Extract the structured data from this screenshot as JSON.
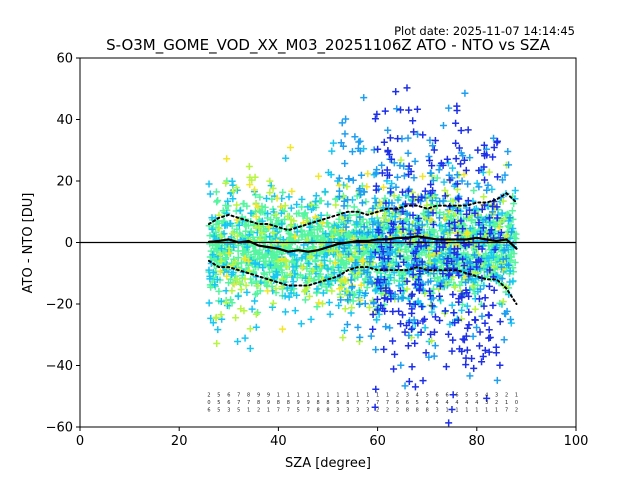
{
  "chart_data": {
    "type": "scatter",
    "title": "S-O3M_GOME_VOD_XX_M03_20251106Z ATO - NTO vs SZA",
    "plot_date": "Plot date: 2025-11-07 14:14:45",
    "xlabel": "SZA [degree]",
    "ylabel": "ATO - NTO [DU]",
    "xlim": [
      0,
      100
    ],
    "ylim": [
      -60,
      60
    ],
    "xticks": [
      0,
      20,
      40,
      60,
      80,
      100
    ],
    "yticks": [
      -60,
      -40,
      -20,
      0,
      20,
      40,
      60
    ],
    "reference_line_y": 0,
    "series": [
      {
        "name": "mean",
        "style": "solid",
        "color": "#000000",
        "x": [
          26,
          28,
          30,
          32,
          34,
          36,
          38,
          40,
          42,
          44,
          46,
          48,
          50,
          52,
          54,
          56,
          58,
          60,
          62,
          64,
          66,
          68,
          70,
          72,
          74,
          76,
          78,
          80,
          82,
          84,
          86,
          88
        ],
        "y": [
          0.2,
          0.5,
          1.0,
          0.0,
          0.5,
          -1.0,
          -1.5,
          -2.0,
          -3.0,
          -2.5,
          -3.0,
          -2.5,
          -1.5,
          -0.5,
          0.0,
          0.5,
          0.5,
          1.0,
          1.0,
          1.5,
          1.5,
          2.0,
          1.5,
          1.0,
          1.0,
          1.0,
          1.0,
          1.5,
          1.0,
          0.5,
          1.0,
          -2.0
        ]
      },
      {
        "name": "mean + 1 sigma",
        "style": "dotted",
        "color": "#000000",
        "x": [
          26,
          28,
          30,
          32,
          34,
          36,
          38,
          40,
          42,
          44,
          46,
          48,
          50,
          52,
          54,
          56,
          58,
          60,
          62,
          64,
          66,
          68,
          70,
          72,
          74,
          76,
          78,
          80,
          82,
          84,
          86,
          88
        ],
        "y": [
          6,
          8,
          9,
          8,
          7,
          6,
          6,
          5,
          4,
          5,
          6,
          7,
          8,
          9,
          10,
          10,
          9,
          10,
          11,
          11,
          12,
          12,
          11,
          12,
          12,
          12,
          12,
          13,
          13,
          14,
          16,
          13
        ]
      },
      {
        "name": "mean - 1 sigma",
        "style": "dotted",
        "color": "#000000",
        "x": [
          26,
          28,
          30,
          32,
          34,
          36,
          38,
          40,
          42,
          44,
          46,
          48,
          50,
          52,
          54,
          56,
          58,
          60,
          62,
          64,
          66,
          68,
          70,
          72,
          74,
          76,
          78,
          80,
          82,
          84,
          86,
          88
        ],
        "y": [
          -6,
          -8,
          -8,
          -9,
          -10,
          -11,
          -12,
          -13,
          -14,
          -14,
          -14,
          -13,
          -12,
          -11,
          -9,
          -8,
          -8,
          -9,
          -9,
          -9,
          -9,
          -8,
          -9,
          -9,
          -9,
          -9,
          -10,
          -11,
          -12,
          -12,
          -15,
          -20
        ]
      }
    ],
    "scatter_clusters": [
      {
        "name": "dense core",
        "color": "#55f5a0",
        "x_range": [
          26,
          88
        ],
        "y_range": [
          -22,
          18
        ],
        "count": 1400
      },
      {
        "name": "cyan spread",
        "color": "#17c6f2",
        "x_range": [
          26,
          88
        ],
        "y_range": [
          -35,
          30
        ],
        "count": 500
      },
      {
        "name": "yellow-green",
        "color": "#b7f542",
        "x_range": [
          27,
          86
        ],
        "y_range": [
          -38,
          32
        ],
        "count": 220
      },
      {
        "name": "yellow",
        "color": "#f2e62b",
        "x_range": [
          28,
          86
        ],
        "y_range": [
          -30,
          40
        ],
        "count": 90
      },
      {
        "name": "light blue",
        "color": "#1e9ef0",
        "x_range": [
          52,
          87
        ],
        "y_range": [
          -50,
          55
        ],
        "count": 260
      },
      {
        "name": "blue columns",
        "color": "#1e2fe8",
        "x_range": [
          59,
          85
        ],
        "y_range": [
          -60,
          58
        ],
        "count": 320
      }
    ],
    "bin_count_labels": {
      "row1": [
        "2",
        "5",
        "6",
        "7",
        "8",
        "9",
        "9",
        "1",
        "1",
        "1",
        "1",
        "1",
        "1",
        "1",
        "1",
        "1",
        "1",
        "1",
        "1",
        "2",
        "3",
        "4",
        "5",
        "6",
        "6",
        "6",
        "5",
        "5",
        "4",
        "3",
        "2",
        "1"
      ],
      "row2": [
        "0",
        "5",
        "6",
        "7",
        "7",
        "8",
        "9",
        "8",
        "8",
        "9",
        "9",
        "8",
        "8",
        "8",
        "8",
        "7",
        "7",
        "7",
        "7",
        "6",
        "6",
        "5",
        "4",
        "4",
        "4",
        "4",
        "4",
        "4",
        "3",
        "2",
        "1",
        "0"
      ],
      "row3": [
        "6",
        "5",
        "3",
        "5",
        "1",
        "2",
        "1",
        "7",
        "7",
        "5",
        "7",
        "8",
        "8",
        "3",
        "3",
        "3",
        "3",
        "2",
        "2",
        "2",
        "8",
        "8",
        "8",
        "3",
        "1",
        "1",
        "1",
        "1",
        "1",
        "1",
        "7",
        "2"
      ]
    }
  }
}
